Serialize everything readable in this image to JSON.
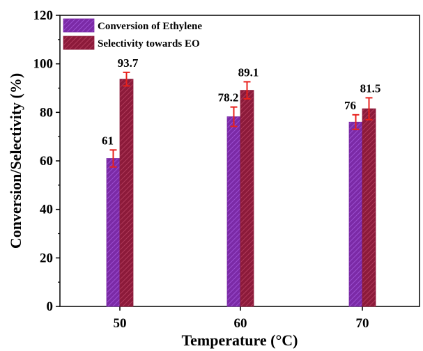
{
  "chart_data": {
    "type": "bar",
    "xlabel": "Temperature (°C)",
    "ylabel": "Conversion/Selectivity (%)",
    "ylim": [
      0,
      120
    ],
    "yticks": [
      0,
      20,
      40,
      60,
      80,
      100,
      120
    ],
    "categories": [
      "50",
      "60",
      "70"
    ],
    "legend_position": "top-left",
    "grid": false,
    "series": [
      {
        "name": "Conversion of Ethylene",
        "color": "#7b2aa6",
        "values": [
          61,
          78.2,
          76
        ],
        "errors": [
          3.5,
          4.0,
          3.0
        ],
        "labels": [
          "61",
          "78.2",
          "76"
        ]
      },
      {
        "name": "Selectivity towards EO",
        "color": "#8c1a3a",
        "values": [
          93.7,
          89.1,
          81.5
        ],
        "errors": [
          2.8,
          3.5,
          4.5
        ],
        "labels": [
          "93.7",
          "89.1",
          "81.5"
        ]
      }
    ],
    "error_bar_color": "#e8201c"
  }
}
